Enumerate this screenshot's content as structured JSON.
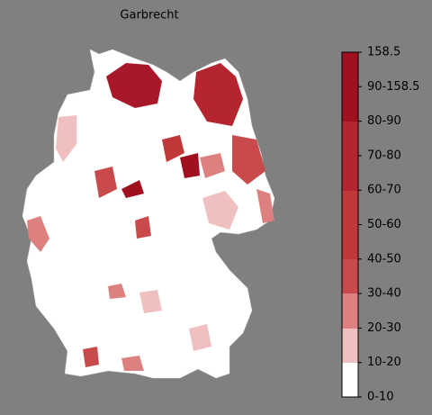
{
  "title": "Garbrecht",
  "colorbar": {
    "ticks": [
      "158.5",
      "90-158.5",
      "80-90",
      "70-80",
      "60-70",
      "50-60",
      "40-50",
      "30-40",
      "20-30",
      "10-20",
      "0-10"
    ]
  }
}
